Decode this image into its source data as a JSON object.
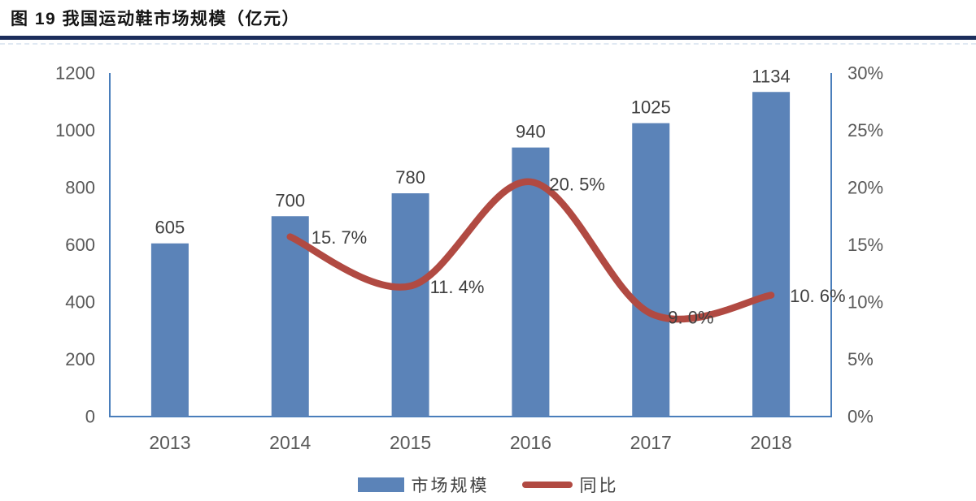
{
  "figure": {
    "title": "图 19  我国运动鞋市场规模（亿元）"
  },
  "colors": {
    "bar": "#5b83b8",
    "line": "#b14a42",
    "axis": "#4a7ebb",
    "tick_text": "#595959",
    "value_text": "#3f3f3f",
    "title_rule": "#1b2d5b"
  },
  "chart_data": {
    "type": "bar+line",
    "title": "图 19  我国运动鞋市场规模（亿元）",
    "categories": [
      "2013",
      "2014",
      "2015",
      "2016",
      "2017",
      "2018"
    ],
    "series": [
      {
        "name": "市场规模",
        "type": "bar",
        "axis": "left",
        "values": [
          605,
          700,
          780,
          940,
          1025,
          1134
        ],
        "labels": [
          "605",
          "700",
          "780",
          "940",
          "1025",
          "1134"
        ]
      },
      {
        "name": "同比",
        "type": "line",
        "axis": "right",
        "values": [
          null,
          15.7,
          11.4,
          20.5,
          9.0,
          10.6
        ],
        "labels": [
          null,
          "15. 7%",
          "11. 4%",
          "20. 5%",
          "9. 0%",
          "10. 6%"
        ]
      }
    ],
    "left_axis": {
      "min": 0,
      "max": 1200,
      "step": 200,
      "ticks": [
        "0",
        "200",
        "400",
        "600",
        "800",
        "1000",
        "1200"
      ]
    },
    "right_axis": {
      "min": 0,
      "max": 30,
      "step": 5,
      "ticks": [
        "0%",
        "5%",
        "10%",
        "15%",
        "20%",
        "25%",
        "30%"
      ]
    },
    "grid": false,
    "legend_position": "bottom"
  },
  "legend": {
    "items": [
      {
        "label": "市场规模",
        "swatch": "bar"
      },
      {
        "label": "同比",
        "swatch": "line"
      }
    ]
  }
}
